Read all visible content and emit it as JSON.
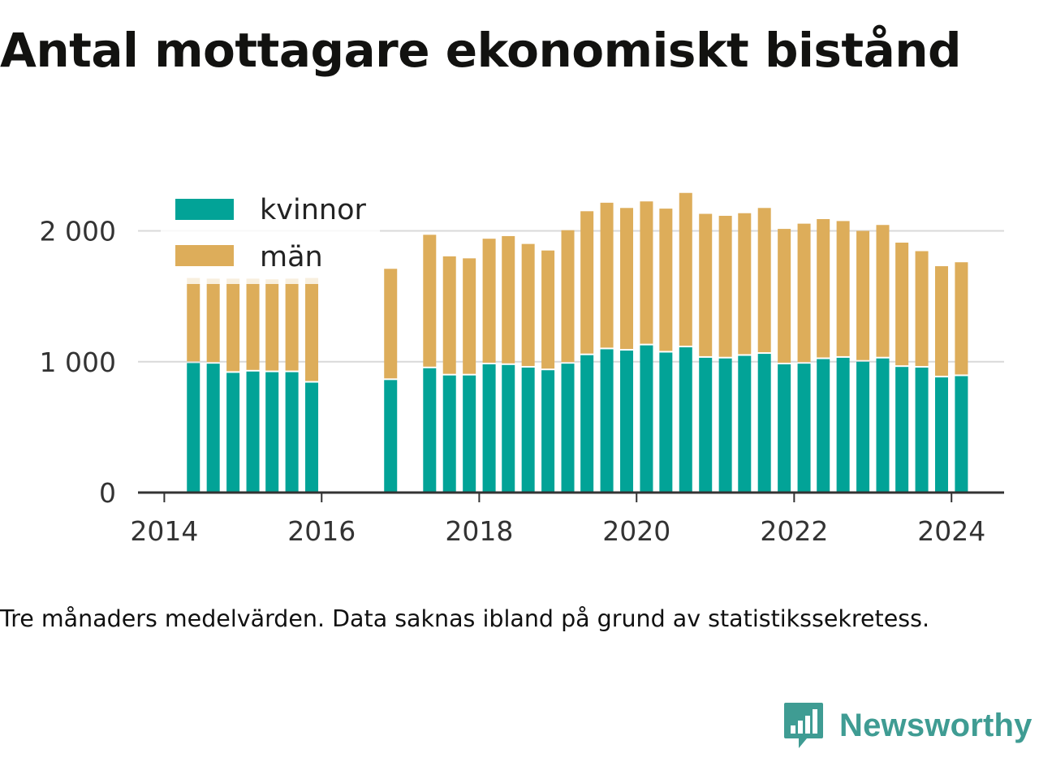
{
  "title": "Antal mottagare ekonomiskt bistånd",
  "note": "Tre månaders medelvärden. Data saknas ibland på grund av statistikssekretess.",
  "brand": {
    "name": "Newsworthy",
    "icon": "newsworthy-logo-icon"
  },
  "colors": {
    "kvinnor": "#02a397",
    "man": "#ddad5a",
    "faded": "#f8eedc",
    "grid": "#d9d9d9",
    "axis": "#333333",
    "brand": "#3f9c93"
  },
  "chart_data": {
    "type": "bar",
    "stacked": true,
    "legend_placement": "top-left",
    "grid": true,
    "ylim": [
      0,
      2400
    ],
    "yticks": [
      {
        "value": 0,
        "label": "0"
      },
      {
        "value": 1000,
        "label": "1 000"
      },
      {
        "value": 2000,
        "label": "2 000"
      }
    ],
    "xlim": [
      "2013-09-01",
      "2024-09-01"
    ],
    "xticks": [
      {
        "date": "2014-01-01",
        "label": "2014"
      },
      {
        "date": "2016-01-01",
        "label": "2016"
      },
      {
        "date": "2018-01-01",
        "label": "2018"
      },
      {
        "date": "2020-01-01",
        "label": "2020"
      },
      {
        "date": "2022-01-01",
        "label": "2022"
      },
      {
        "date": "2024-01-01",
        "label": "2024"
      }
    ],
    "legend": [
      "kvinnor",
      "män"
    ],
    "dates": [
      "2014-05",
      "2014-08",
      "2014-11",
      "2015-02",
      "2015-05",
      "2015-08",
      "2015-11",
      "2016-11",
      "2017-05",
      "2017-08",
      "2017-11",
      "2018-02",
      "2018-05",
      "2018-08",
      "2018-11",
      "2019-02",
      "2019-05",
      "2019-08",
      "2019-11",
      "2020-02",
      "2020-05",
      "2020-08",
      "2020-11",
      "2021-02",
      "2021-05",
      "2021-08",
      "2021-11",
      "2022-02",
      "2022-05",
      "2022-08",
      "2022-11",
      "2023-02",
      "2023-05",
      "2023-08",
      "2023-11",
      "2024-02"
    ],
    "series": [
      {
        "name": "kvinnor",
        "values": [
          990,
          985,
          915,
          925,
          920,
          920,
          840,
          860,
          950,
          895,
          895,
          980,
          975,
          955,
          935,
          985,
          1050,
          1095,
          1085,
          1125,
          1070,
          1110,
          1030,
          1025,
          1045,
          1060,
          980,
          985,
          1020,
          1030,
          1000,
          1025,
          960,
          955,
          880,
          890
        ]
      },
      {
        "name": "män",
        "values": [
          650,
          650,
          720,
          710,
          710,
          715,
          800,
          850,
          1020,
          910,
          895,
          960,
          985,
          945,
          915,
          1020,
          1100,
          1120,
          1090,
          1100,
          1100,
          1180,
          1100,
          1090,
          1090,
          1115,
          1035,
          1070,
          1070,
          1045,
          1000,
          1020,
          950,
          890,
          850,
          870
        ]
      }
    ]
  }
}
